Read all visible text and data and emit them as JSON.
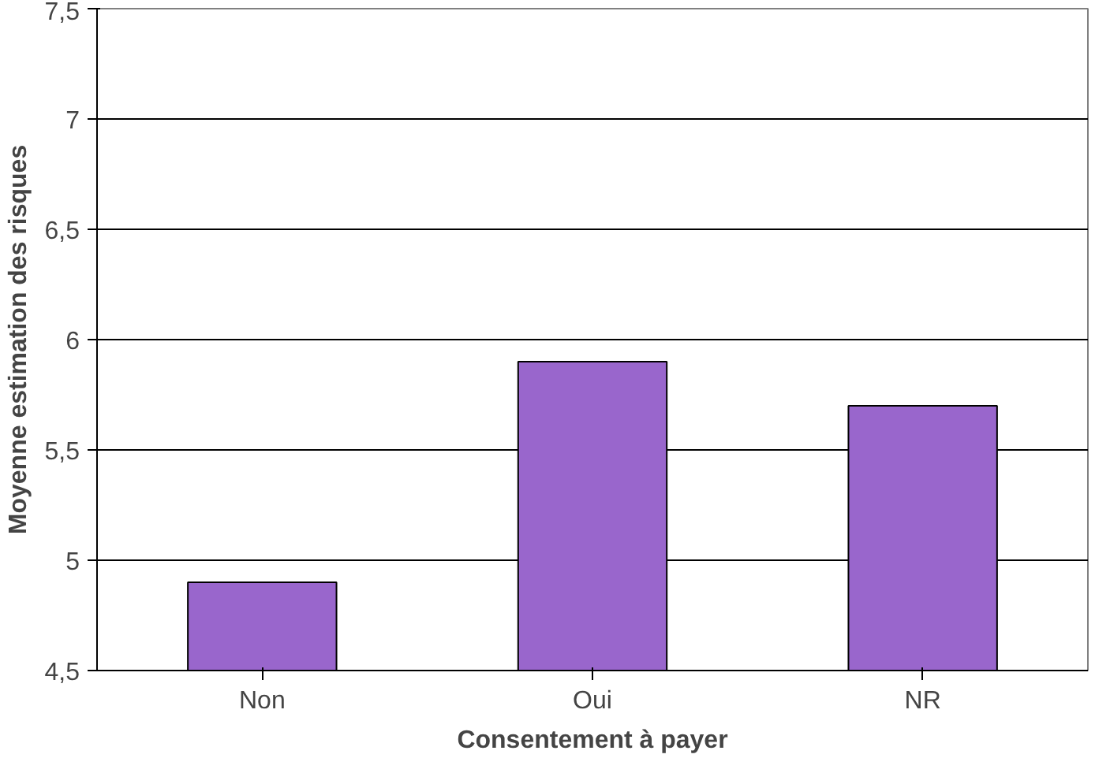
{
  "chart_data": {
    "type": "bar",
    "xlabel": "Consentement à payer",
    "ylabel": "Moyenne estimation des risques",
    "categories": [
      "Non",
      "Oui",
      "NR"
    ],
    "values": [
      4.9,
      5.9,
      5.7
    ],
    "color": "#9966cc",
    "ylim": [
      4.5,
      7.5
    ],
    "yticks": [
      {
        "value": 4.5,
        "label": "4,5"
      },
      5,
      {
        "value": 5.5,
        "label": "5,5"
      },
      6,
      {
        "value": 6.5,
        "label": "6,5"
      },
      7,
      {
        "value": 7.5,
        "label": "7,5"
      }
    ],
    "grid": "y"
  }
}
